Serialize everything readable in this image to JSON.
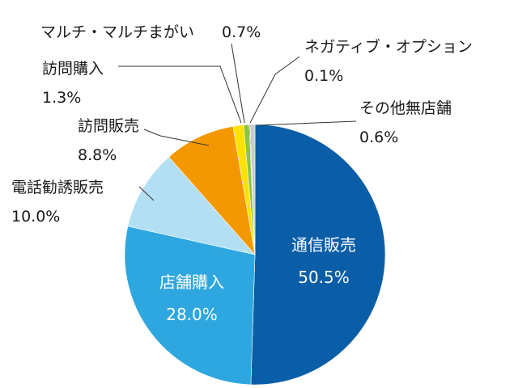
{
  "chart_data": {
    "type": "pie",
    "title": "",
    "unit": "%",
    "start": "12 o'clock, clockwise",
    "categories": [
      "通信販売",
      "店舗購入",
      "電話勧誘販売",
      "訪問販売",
      "訪問購入",
      "マルチ・マルチまがい",
      "ネガティブ・オプション",
      "その他無店舗"
    ],
    "values": [
      50.5,
      28.0,
      10.0,
      8.8,
      1.3,
      0.7,
      0.1,
      0.6
    ],
    "value_labels": [
      "50.5%",
      "28.0%",
      "10.0%",
      "8.8%",
      "1.3%",
      "0.7%",
      "0.1%",
      "0.6%"
    ],
    "colors": [
      "#0a5ea8",
      "#2ea7e0",
      "#b3dff5",
      "#f39800",
      "#ffe100",
      "#8cc63f",
      "#2c2c6c",
      "#c9caca"
    ],
    "legend": "none (labels with leader lines)"
  }
}
